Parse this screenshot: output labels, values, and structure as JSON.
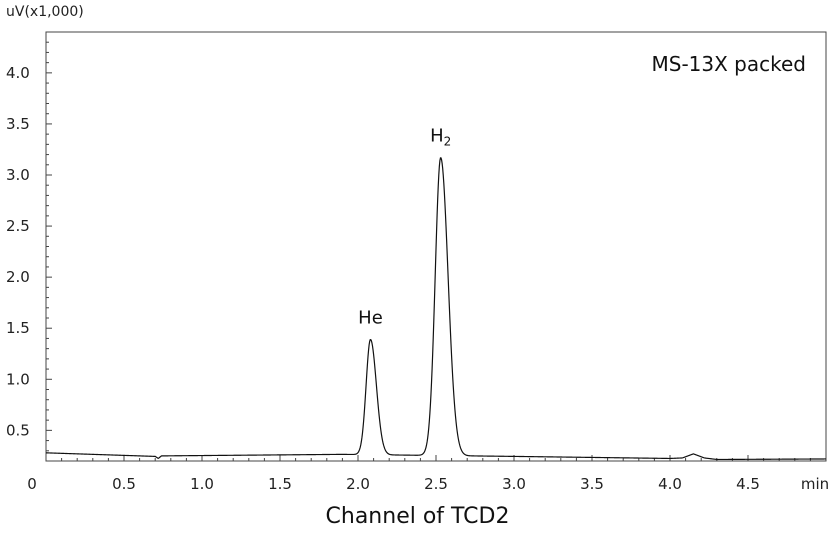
{
  "chart_data": {
    "type": "line",
    "title": "",
    "y_unit_label": "uV(x1,000)",
    "xlabel": "min",
    "caption": "Channel of TCD2",
    "inset_label": "MS-13X packed",
    "xlim": [
      0,
      5.0
    ],
    "ylim": [
      0.2,
      4.4
    ],
    "x_ticks": [
      {
        "value": 0,
        "label": "0"
      },
      {
        "value": 0.5,
        "label": "0.5"
      },
      {
        "value": 1.0,
        "label": "1.0"
      },
      {
        "value": 1.5,
        "label": "1.5"
      },
      {
        "value": 2.0,
        "label": "2.0"
      },
      {
        "value": 2.5,
        "label": "2.5"
      },
      {
        "value": 3.0,
        "label": "3.0"
      },
      {
        "value": 3.5,
        "label": "3.5"
      },
      {
        "value": 4.0,
        "label": "4.0"
      },
      {
        "value": 4.5,
        "label": "4.5"
      },
      {
        "value": 5.0,
        "label": "min"
      }
    ],
    "y_ticks": [
      {
        "value": 0.5,
        "label": "0.5"
      },
      {
        "value": 1.0,
        "label": "1.0"
      },
      {
        "value": 1.5,
        "label": "1.5"
      },
      {
        "value": 2.0,
        "label": "2.0"
      },
      {
        "value": 2.5,
        "label": "2.5"
      },
      {
        "value": 3.0,
        "label": "3.0"
      },
      {
        "value": 3.5,
        "label": "3.5"
      },
      {
        "value": 4.0,
        "label": "4.0"
      }
    ],
    "baseline": [
      [
        0.0,
        0.28
      ],
      [
        0.7,
        0.245
      ],
      [
        0.72,
        0.225
      ],
      [
        0.74,
        0.25
      ],
      [
        1.9,
        0.265
      ],
      [
        3.0,
        0.245
      ],
      [
        4.0,
        0.225
      ],
      [
        4.08,
        0.23
      ],
      [
        4.15,
        0.27
      ],
      [
        4.22,
        0.23
      ],
      [
        4.3,
        0.215
      ],
      [
        5.0,
        0.22
      ]
    ],
    "peaks": [
      {
        "name": "He",
        "label_main": "He",
        "label_sub": "",
        "x": 2.08,
        "height": 1.39,
        "sigma": 0.028
      },
      {
        "name": "H2",
        "label_main": "H",
        "label_sub": "2",
        "x": 2.53,
        "height": 3.17,
        "sigma": 0.035
      }
    ],
    "grid": false
  }
}
